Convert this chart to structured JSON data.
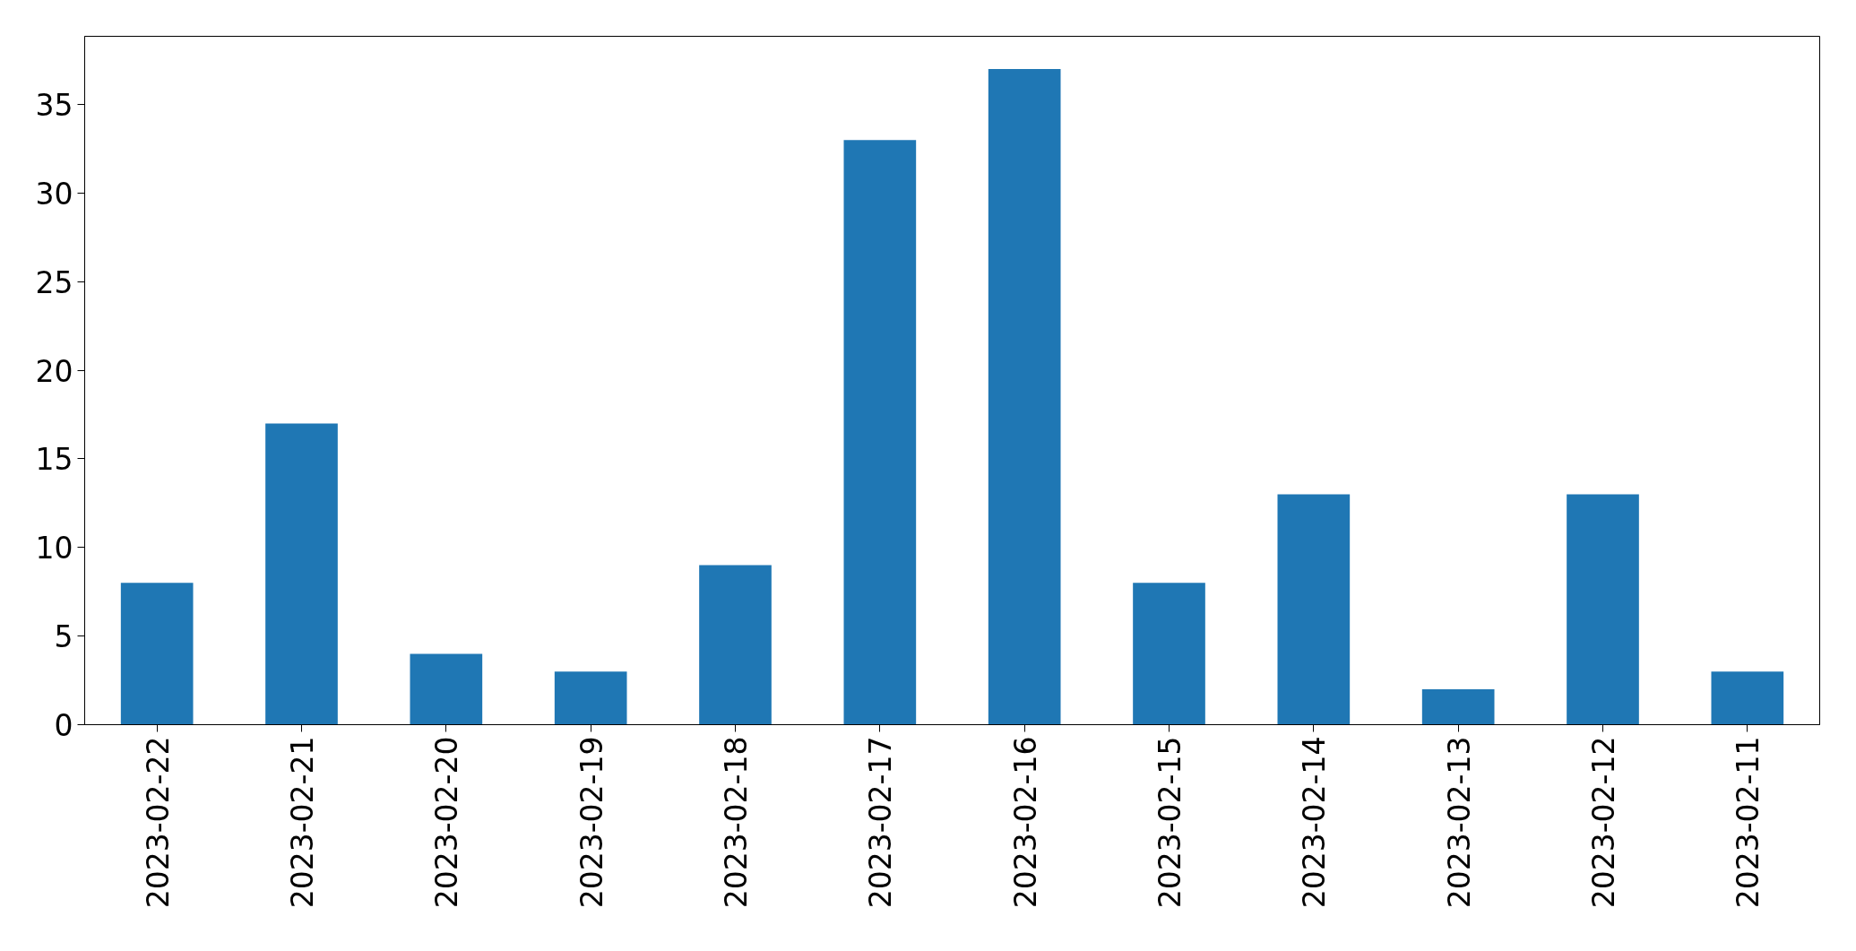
{
  "chart_data": {
    "type": "bar",
    "categories": [
      "2023-02-22",
      "2023-02-21",
      "2023-02-20",
      "2023-02-19",
      "2023-02-18",
      "2023-02-17",
      "2023-02-16",
      "2023-02-15",
      "2023-02-14",
      "2023-02-13",
      "2023-02-12",
      "2023-02-11"
    ],
    "values": [
      8,
      17,
      4,
      3,
      9,
      33,
      37,
      8,
      13,
      2,
      13,
      3
    ],
    "color": "#1f77b4",
    "ylim": [
      0,
      38.85
    ],
    "yticks": [
      0,
      5,
      10,
      15,
      20,
      25,
      30,
      35
    ]
  }
}
